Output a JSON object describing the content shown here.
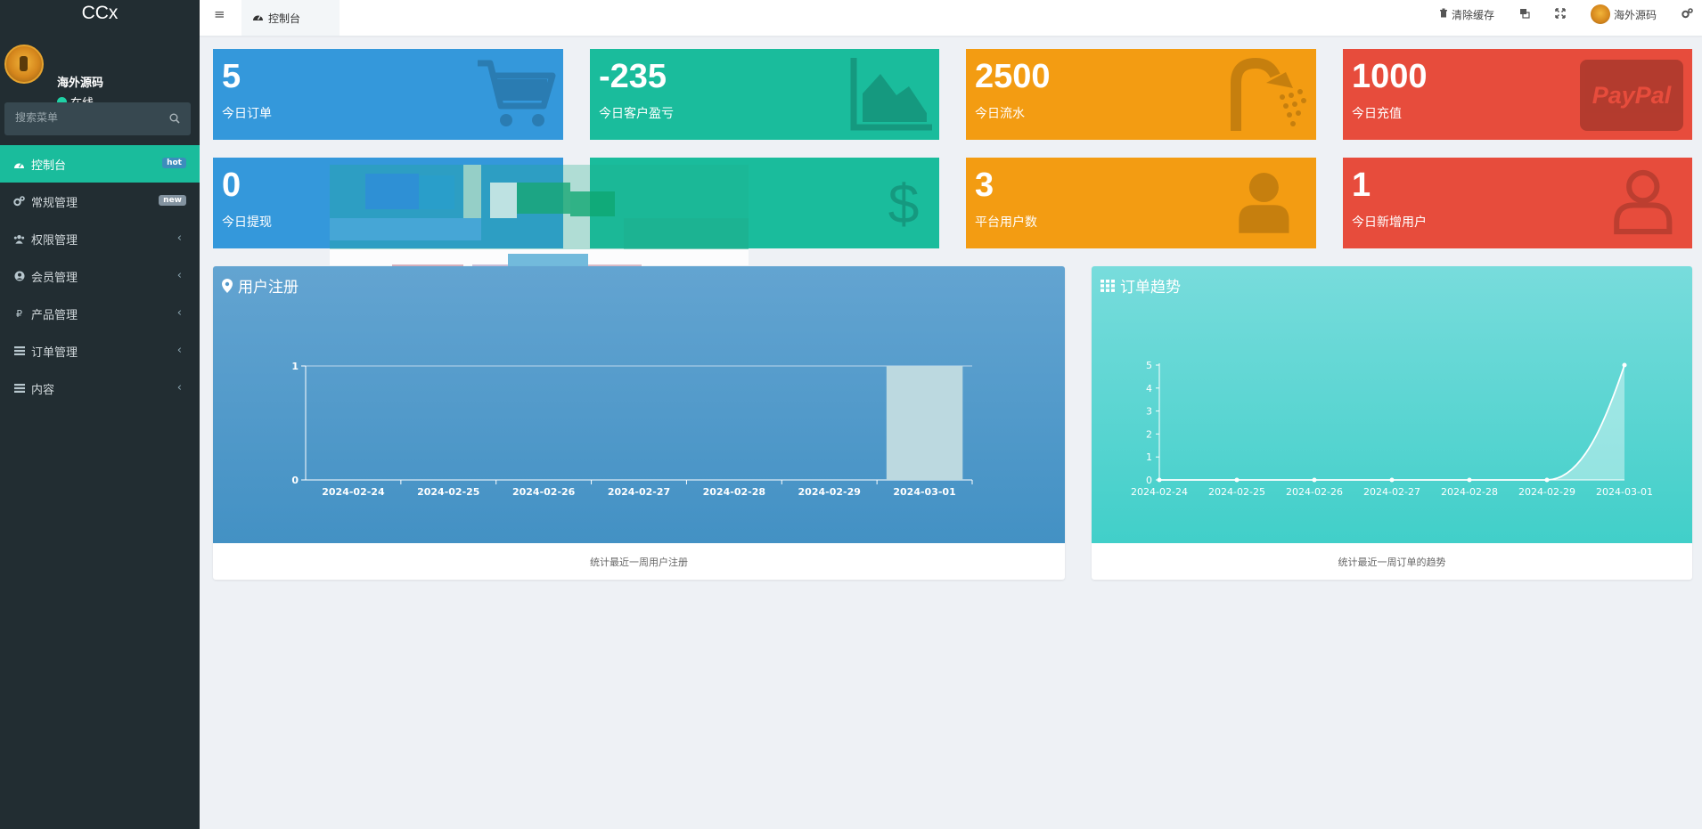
{
  "sidebar": {
    "brand": "CCx",
    "user": {
      "name": "海外源码",
      "status": "在线"
    },
    "search": {
      "placeholder": "搜索菜单"
    },
    "items": [
      {
        "label": "控制台",
        "icon": "dashboard-icon",
        "badge": "hot",
        "active": true
      },
      {
        "label": "常规管理",
        "icon": "cogs-icon",
        "badge": "new"
      },
      {
        "label": "权限管理",
        "icon": "group-icon"
      },
      {
        "label": "会员管理",
        "icon": "user-circle-icon"
      },
      {
        "label": "产品管理",
        "icon": "ruble-icon"
      },
      {
        "label": "订单管理",
        "icon": "list-icon"
      },
      {
        "label": "内容",
        "icon": "list-icon"
      }
    ]
  },
  "topnav": {
    "tab_label": "控制台",
    "clear_cache": "清除缓存",
    "username": "海外源码"
  },
  "stats": [
    {
      "value": "5",
      "label": "今日订单",
      "color": "#3498db",
      "icon": "cart-icon"
    },
    {
      "value": "-235",
      "label": "今日客户盈亏",
      "color": "#1abc9c",
      "icon": "area-chart-icon"
    },
    {
      "value": "2500",
      "label": "今日流水",
      "color": "#f39c12",
      "icon": "shower-icon"
    },
    {
      "value": "1000",
      "label": "今日充值",
      "color": "#e74c3c",
      "icon": "paypal-icon"
    },
    {
      "value": "0",
      "label": "今日提现",
      "color": "#3498db",
      "icon": "wallet-icon"
    },
    {
      "value": "",
      "label": "",
      "color": "#1abc9c",
      "icon": "dollar-icon"
    },
    {
      "value": "3",
      "label": "平台用户数",
      "color": "#f39c12",
      "icon": "user-icon"
    },
    {
      "value": "1",
      "label": "今日新增用户",
      "color": "#e74c3c",
      "icon": "user-outline-icon"
    }
  ],
  "paypal_text": "PayPal",
  "panels": {
    "register": {
      "title": "用户注册",
      "footer": "统计最近一周用户注册"
    },
    "orders": {
      "title": "订单趋势",
      "footer": "统计最近一周订单的趋势"
    }
  },
  "chart_data": [
    {
      "type": "bar",
      "title": "用户注册",
      "categories": [
        "2024-02-24",
        "2024-02-25",
        "2024-02-26",
        "2024-02-27",
        "2024-02-28",
        "2024-02-29",
        "2024-03-01"
      ],
      "values": [
        0,
        0,
        0,
        0,
        0,
        0,
        1
      ],
      "ylim": [
        0,
        1
      ],
      "yticks": [
        0,
        1
      ],
      "grid": false
    },
    {
      "type": "area",
      "title": "订单趋势",
      "categories": [
        "2024-02-24",
        "2024-02-25",
        "2024-02-26",
        "2024-02-27",
        "2024-02-28",
        "2024-02-29",
        "2024-03-01"
      ],
      "values": [
        0,
        0,
        0,
        0,
        0,
        0,
        5
      ],
      "ylim": [
        0,
        5
      ],
      "yticks": [
        0,
        1,
        2,
        3,
        4,
        5
      ],
      "grid": false
    }
  ]
}
